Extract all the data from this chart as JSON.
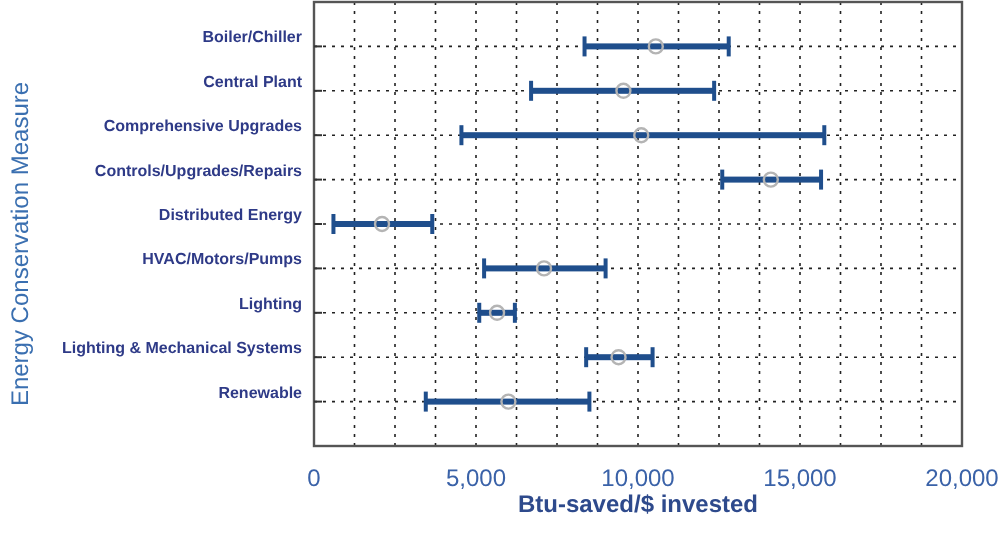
{
  "chart_data": {
    "type": "bar",
    "orientation": "horizontal",
    "xlabel": "Btu-saved/$ invested",
    "ylabel": "Energy Conservation Measure",
    "categories": [
      "Boiler/Chiller",
      "Central Plant",
      "Comprehensive Upgrades",
      "Controls/Upgrades/Repairs",
      "Distributed Energy",
      "HVAC/Motors/Pumps",
      "Lighting",
      "Lighting & Mechanical Systems",
      "Renewable"
    ],
    "series": [
      {
        "type": "bar",
        "color": "#1f4e8c",
        "base": [
          8350,
          6700,
          4550,
          12600,
          600,
          5250,
          5100,
          8400,
          3450
        ],
        "values": [
          4450,
          5650,
          11200,
          3050,
          3050,
          3750,
          1100,
          2050,
          5050
        ]
      },
      {
        "type": "scatter",
        "marker": "circle",
        "color": "#b4b4b4",
        "x": [
          "Boiler/Chiller",
          "Central Plant",
          "Comprehensive Upgrades",
          "Controls/Upgrades/Repairs",
          "Distributed Energy",
          "HVAC/Motors/Pumps",
          "Lighting",
          "Lighting & Mechanical Systems",
          "Renewable"
        ],
        "values": [
          10550,
          9550,
          10100,
          14100,
          2100,
          7100,
          5650,
          9400,
          6000
        ]
      }
    ],
    "xlim": [
      0,
      20000
    ],
    "xticks": [
      0,
      {
        "value": 1250,
        "label": null
      },
      {
        "value": 2500,
        "label": null
      },
      {
        "value": 3750,
        "label": null
      },
      {
        "value": 5000,
        "label": "5,000"
      },
      {
        "value": 6250,
        "label": null
      },
      {
        "value": 7500,
        "label": null
      },
      {
        "value": 8750,
        "label": null
      },
      {
        "value": 10000,
        "label": "10,000"
      },
      {
        "value": 11250,
        "label": null
      },
      {
        "value": 12500,
        "label": null
      },
      {
        "value": 13750,
        "label": null
      },
      {
        "value": 15000,
        "label": "15,000"
      },
      {
        "value": 16250,
        "label": null
      },
      {
        "value": 17500,
        "label": null
      },
      {
        "value": 18750,
        "label": null
      },
      {
        "value": 20000,
        "label": "20,000"
      }
    ],
    "grid": true
  }
}
